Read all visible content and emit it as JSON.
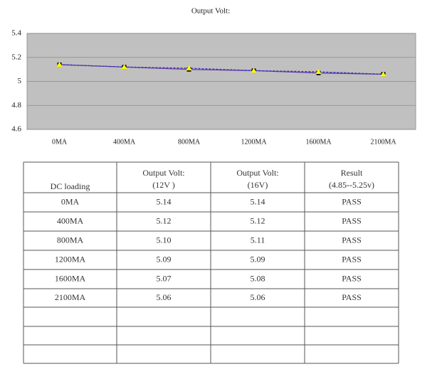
{
  "chart_data": {
    "type": "line",
    "title": "Output Volt:",
    "categories": [
      "0MA",
      "400MA",
      "800MA",
      "1200MA",
      "1600MA",
      "2100MA"
    ],
    "series": [
      {
        "color": "#6a3d9a",
        "marker": "square",
        "marker_color": "#000000",
        "values": [
          5.14,
          5.12,
          5.1,
          5.09,
          5.07,
          5.06
        ]
      },
      {
        "color": "#3030c0",
        "marker": "triangle",
        "marker_color": "#ffff00",
        "dashed": true,
        "values": [
          5.14,
          5.12,
          5.11,
          5.09,
          5.08,
          5.06
        ]
      }
    ],
    "ylim": [
      4.6,
      5.4
    ],
    "yticks": [
      4.6,
      4.8,
      5,
      5.2,
      5.4
    ],
    "grid": true
  },
  "table": {
    "header": [
      [
        "DC loading"
      ],
      [
        "Output Volt:",
        "(12V )"
      ],
      [
        "Output Volt:",
        "(16V)"
      ],
      [
        "Result",
        "(4.85--5.25v)"
      ]
    ],
    "rows": [
      [
        "0MA",
        "5.14",
        "5.14",
        "PASS"
      ],
      [
        "400MA",
        "5.12",
        "5.12",
        "PASS"
      ],
      [
        "800MA",
        "5.10",
        "5.11",
        "PASS"
      ],
      [
        "1200MA",
        "5.09",
        "5.09",
        "PASS"
      ],
      [
        "1600MA",
        "5.07",
        "5.08",
        "PASS"
      ],
      [
        "2100MA",
        "5.06",
        "5.06",
        "PASS"
      ]
    ]
  }
}
